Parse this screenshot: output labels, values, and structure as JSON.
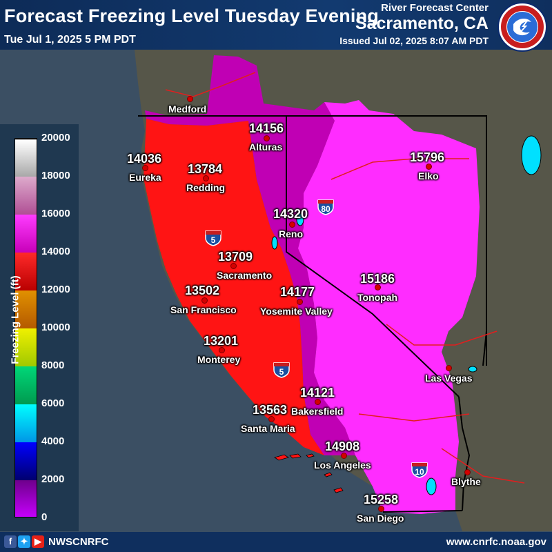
{
  "header": {
    "title": "Forecast Freezing Level Tuesday Evening",
    "valid_time": "Tue Jul 1, 2025 5 PM PDT",
    "center_name": "River Forecast Center",
    "center_city": "Sacramento, CA",
    "issued": "Issued Jul 02, 2025 8:07 AM PDT",
    "logo_text": "NATIONAL WEATHER SERVICE"
  },
  "legend": {
    "title": "Freezing Level (ft)",
    "ticks": [
      "20000",
      "18000",
      "16000",
      "14000",
      "12000",
      "10000",
      "8000",
      "6000",
      "4000",
      "2000",
      "0"
    ]
  },
  "stations": [
    {
      "name": "Medford",
      "value": ""
    },
    {
      "name": "Alturas",
      "value": "14156"
    },
    {
      "name": "Eureka",
      "value": "14036"
    },
    {
      "name": "Redding",
      "value": "13784"
    },
    {
      "name": "Elko",
      "value": "15796"
    },
    {
      "name": "Reno",
      "value": "14320"
    },
    {
      "name": "Sacramento",
      "value": "13709"
    },
    {
      "name": "San Francisco",
      "value": "13502"
    },
    {
      "name": "Yosemite Valley",
      "value": "14177"
    },
    {
      "name": "Tonopah",
      "value": "15186"
    },
    {
      "name": "Monterey",
      "value": "13201"
    },
    {
      "name": "Las Vegas",
      "value": ""
    },
    {
      "name": "Bakersfield",
      "value": "14121"
    },
    {
      "name": "Santa Maria",
      "value": "13563"
    },
    {
      "name": "Los Angeles",
      "value": "14908"
    },
    {
      "name": "Blythe",
      "value": ""
    },
    {
      "name": "San Diego",
      "value": "15258"
    }
  ],
  "highways": [
    "5",
    "80",
    "5",
    "10"
  ],
  "footer": {
    "handle": "NWSCNRFC",
    "website": "www.cnrfc.noaa.gov",
    "social_icons": [
      "facebook-icon",
      "twitter-icon",
      "youtube-icon"
    ]
  },
  "colors": {
    "header_bg": "#0f2f5e",
    "freezing_13k": "#ff1a1a",
    "freezing_14k": "#cc00b0",
    "freezing_15k": "#ff33ff",
    "ocean": "#3b4f63",
    "land_outside": "#55554a"
  }
}
